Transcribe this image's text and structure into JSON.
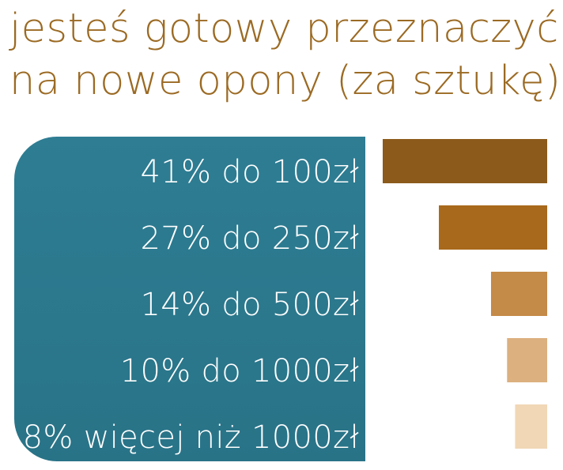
{
  "title": {
    "line1": "jesteś gotowy przeznaczyć",
    "line2": "na nowe opony (za sztukę)?"
  },
  "colors": {
    "title": "#9b6a23",
    "panel": "#2e7d93",
    "bars": [
      "#8c5a1a",
      "#a8691c",
      "#c48a48",
      "#dcb07f",
      "#f1d7b6"
    ]
  },
  "chart_data": {
    "type": "bar",
    "orientation": "horizontal",
    "categories": [
      "do 100zł",
      "do 250zł",
      "do 500zł",
      "do 1000zł",
      "więcej niż 1000zł"
    ],
    "values": [
      41,
      27,
      14,
      10,
      8
    ],
    "unit": "%",
    "labels": [
      "41% do 100zł",
      "27% do 250zł",
      "14% do 500zł",
      "10% do 1000zł",
      "8% więcej niż 1000zł"
    ]
  }
}
